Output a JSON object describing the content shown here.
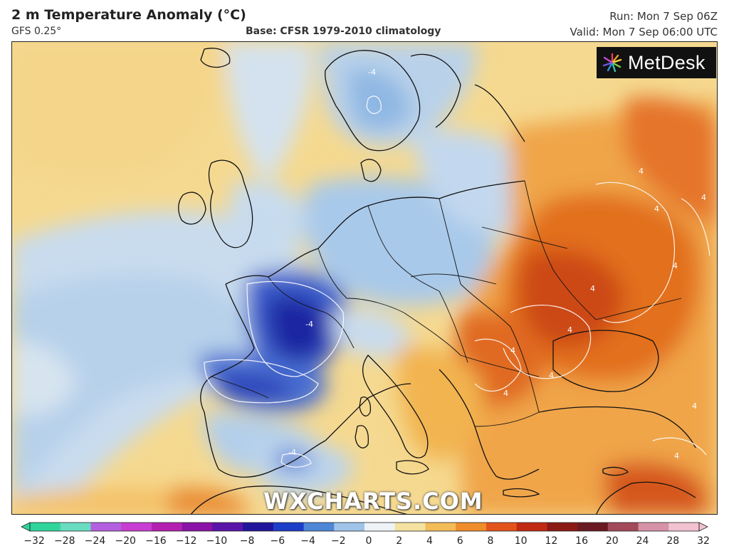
{
  "header": {
    "title": "2 m Temperature Anomaly (°C)",
    "model": "GFS 0.25°",
    "base": "Base: CFSR 1979-2010 climatology",
    "run": "Run: Mon 7 Sep 06Z",
    "valid": "Valid: Mon 7 Sep 06:00 UTC"
  },
  "logo": {
    "text": "MetDesk",
    "icon": "burst-logo-icon"
  },
  "watermark": "WXCHARTS.COM",
  "colorbar": {
    "ticks": [
      "−32",
      "−28",
      "−24",
      "−20",
      "−16",
      "−12",
      "−10",
      "−8",
      "−6",
      "−4",
      "−2",
      "0",
      "2",
      "4",
      "6",
      "8",
      "10",
      "12",
      "16",
      "20",
      "24",
      "28",
      "32"
    ],
    "colors": [
      "#2fd59a",
      "#6adcbf",
      "#b35fe0",
      "#c83dd2",
      "#b320b0",
      "#8a12a6",
      "#5a14a8",
      "#22159b",
      "#1c3ec8",
      "#4f86d6",
      "#9fc4e8",
      "#eef3f7",
      "#f6e2a0",
      "#f2bc58",
      "#ef8c2c",
      "#e3541c",
      "#c02a12",
      "#8c1a14",
      "#6a1a22",
      "#a24a5a",
      "#d692a6",
      "#f2c2d0"
    ]
  },
  "map": {
    "colors": {
      "ocean_warm": "#f5d990",
      "cold_light": "#c9dcee",
      "cold_mid": "#9ec1e6",
      "cold_strong": "#3f64cf",
      "cold_core": "#1b28a2",
      "warm_light": "#f4c66c",
      "warm_mid": "#ee9b3a",
      "warm_strong": "#e06a22",
      "warm_core": "#c94a16",
      "border": "#111111",
      "contour": "#ffffff"
    },
    "contour_labels": [
      "4",
      "4",
      "4",
      "4",
      "4",
      "4",
      "4",
      "4",
      "4",
      "4",
      "4",
      "-4",
      "-4",
      "-4"
    ]
  }
}
